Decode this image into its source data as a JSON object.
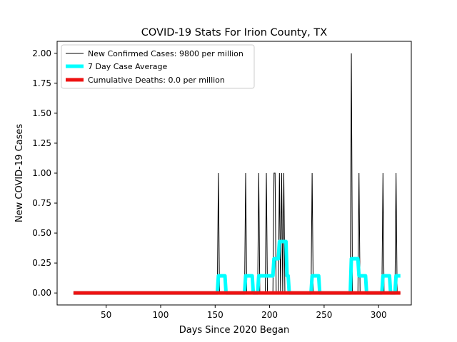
{
  "chart_data": {
    "type": "line",
    "title": "COVID-19 Stats For Irion County, TX",
    "xlabel": "Days Since 2020 Began",
    "ylabel": "New COVID-19 Cases",
    "xlim": [
      5,
      330
    ],
    "ylim": [
      -0.1,
      2.1
    ],
    "xticks": [
      50,
      100,
      150,
      200,
      250,
      300
    ],
    "yticks": [
      0.0,
      0.25,
      0.5,
      0.75,
      1.0,
      1.25,
      1.5,
      1.75,
      2.0
    ],
    "xtick_labels": [
      "50",
      "100",
      "150",
      "200",
      "250",
      "300"
    ],
    "ytick_labels": [
      "0.00",
      "0.25",
      "0.50",
      "0.75",
      "1.00",
      "1.25",
      "1.50",
      "1.75",
      "2.00"
    ],
    "grid": false,
    "legend_position": "top-left",
    "x_range": [
      20,
      320
    ],
    "series": [
      {
        "name": "New Confirmed Cases: 9800 per million",
        "color": "#000000",
        "style": "thin",
        "points": [
          [
            153,
            1
          ],
          [
            178,
            1
          ],
          [
            190,
            1
          ],
          [
            197,
            1
          ],
          [
            204,
            1
          ],
          [
            205,
            1
          ],
          [
            209,
            1
          ],
          [
            211,
            1
          ],
          [
            213,
            1
          ],
          [
            239,
            1
          ],
          [
            275,
            2
          ],
          [
            282,
            1
          ],
          [
            304,
            1
          ],
          [
            316,
            1
          ]
        ]
      },
      {
        "name": "7 Day Case Average",
        "color": "#00ffff",
        "style": "thick",
        "points": [
          [
            152,
            0.0
          ],
          [
            153,
            0.143
          ],
          [
            159,
            0.143
          ],
          [
            160,
            0.0
          ],
          [
            177,
            0.0
          ],
          [
            178,
            0.143
          ],
          [
            184,
            0.143
          ],
          [
            185,
            0.0
          ],
          [
            189,
            0.0
          ],
          [
            190,
            0.143
          ],
          [
            203,
            0.143
          ],
          [
            204,
            0.286
          ],
          [
            208,
            0.286
          ],
          [
            209,
            0.429
          ],
          [
            215,
            0.429
          ],
          [
            216,
            0.143
          ],
          [
            217,
            0.143
          ],
          [
            218,
            0.0
          ],
          [
            238,
            0.0
          ],
          [
            239,
            0.143
          ],
          [
            245,
            0.143
          ],
          [
            246,
            0.0
          ],
          [
            274,
            0.0
          ],
          [
            275,
            0.286
          ],
          [
            281,
            0.286
          ],
          [
            282,
            0.143
          ],
          [
            288,
            0.143
          ],
          [
            289,
            0.0
          ],
          [
            303,
            0.0
          ],
          [
            304,
            0.143
          ],
          [
            310,
            0.143
          ],
          [
            311,
            0.0
          ],
          [
            315,
            0.0
          ],
          [
            316,
            0.143
          ],
          [
            320,
            0.143
          ]
        ]
      },
      {
        "name": "Cumulative Deaths: 0.0 per million",
        "color": "#ee1111",
        "style": "thick",
        "points": [
          [
            20,
            0.0
          ],
          [
            320,
            0.0
          ]
        ]
      }
    ]
  }
}
